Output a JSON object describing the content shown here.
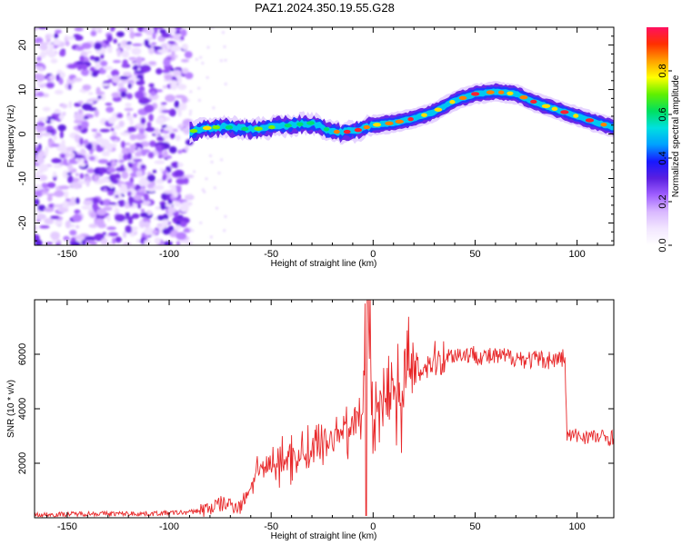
{
  "title": "PAZ1.2024.350.19.55.G28",
  "colors": {
    "snr_line": "#e8282a",
    "colormap": [
      "#ffffff",
      "#f2e6ff",
      "#d9b8ff",
      "#a060ff",
      "#5a1fe0",
      "#1818ff",
      "#00a0ff",
      "#00e0e0",
      "#00e060",
      "#60f000",
      "#ffff00",
      "#ffa000",
      "#ff3000",
      "#ff1060"
    ]
  },
  "chart_data": [
    {
      "type": "heatmap",
      "name": "spectrogram",
      "xlabel": "Height of straight line (km)",
      "ylabel": "Frequency (Hz)",
      "xlim": [
        -166,
        118
      ],
      "ylim": [
        -25,
        24
      ],
      "xticks": [
        -150,
        -100,
        -50,
        0,
        50,
        100
      ],
      "yticks": [
        -20,
        -10,
        0,
        10,
        20
      ],
      "colorbar": {
        "label": "Normalized spectral amplitude",
        "range": [
          0,
          1
        ],
        "ticks": [
          0.0,
          0.2,
          0.4,
          0.6,
          0.8
        ]
      },
      "noise_region_x": [
        -166,
        -90
      ],
      "signal_ridge": {
        "x": [
          -90,
          -80,
          -70,
          -60,
          -50,
          -40,
          -30,
          -20,
          -10,
          0,
          10,
          20,
          30,
          40,
          50,
          60,
          70,
          80,
          90,
          100,
          110,
          118
        ],
        "frequency": [
          0.5,
          1.5,
          1.5,
          1.0,
          1.5,
          2.0,
          2.5,
          0.5,
          0.5,
          2.0,
          2.5,
          3.5,
          5.0,
          7.5,
          9.0,
          9.5,
          9.0,
          7.0,
          5.5,
          4.0,
          2.5,
          1.5
        ]
      }
    },
    {
      "type": "line",
      "name": "snr",
      "xlabel": "Height of straight line (km)",
      "ylabel": "SNR (10 * v/v)",
      "xlim": [
        -166,
        118
      ],
      "ylim": [
        0,
        8000
      ],
      "xticks": [
        -150,
        -100,
        -50,
        0,
        50,
        100
      ],
      "yticks": [
        2000,
        4000,
        6000
      ],
      "series": [
        {
          "x": [
            -166,
            -140,
            -110,
            -90,
            -80,
            -75,
            -70,
            -65,
            -60,
            -55,
            -50,
            -45,
            -40,
            -35,
            -30,
            -25,
            -20,
            -15,
            -10,
            -5,
            -3,
            0,
            5,
            10,
            15,
            20,
            25,
            30,
            35,
            40,
            45,
            50,
            55,
            60,
            65,
            70,
            75,
            80,
            85,
            90,
            94,
            95,
            100,
            105,
            110,
            118
          ],
          "y": [
            100,
            150,
            150,
            200,
            350,
            500,
            500,
            400,
            1200,
            1800,
            1900,
            2000,
            2200,
            2300,
            2500,
            2700,
            3000,
            3300,
            3500,
            3800,
            8000,
            4000,
            4400,
            4700,
            5000,
            5300,
            5600,
            5800,
            5900,
            6000,
            6000,
            6000,
            5900,
            5900,
            5900,
            5900,
            5800,
            5800,
            5800,
            5800,
            5900,
            3000,
            3000,
            3000,
            2950,
            2950
          ]
        }
      ]
    }
  ]
}
